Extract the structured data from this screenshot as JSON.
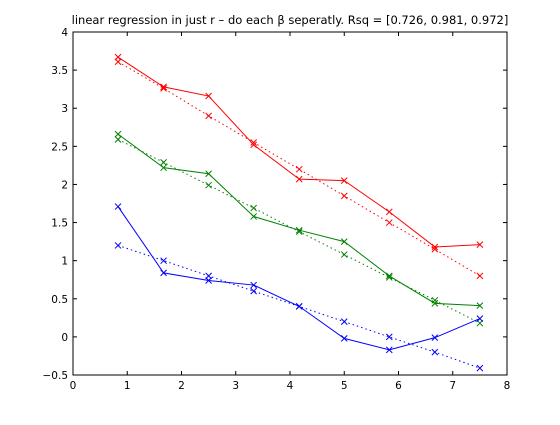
{
  "chart_data": {
    "type": "line",
    "title": "linear regression in just r – do each β seperatly. Rsq = [0.726, 0.981, 0.972]",
    "xlabel": "",
    "ylabel": "",
    "xlim": [
      0,
      8
    ],
    "ylim": [
      -0.5,
      4
    ],
    "xticks": [
      0,
      1,
      2,
      3,
      4,
      5,
      6,
      7,
      8
    ],
    "yticks": [
      -0.5,
      0,
      0.5,
      1,
      1.5,
      2,
      2.5,
      3,
      3.5,
      4
    ],
    "xtick_labels": [
      "0",
      "1",
      "2",
      "3",
      "4",
      "5",
      "6",
      "7",
      "8"
    ],
    "ytick_labels": [
      "−0.5",
      "0",
      "0.5",
      "1",
      "1.5",
      "2",
      "2.5",
      "3",
      "3.5",
      "4"
    ],
    "grid": false,
    "legend": "none",
    "x": [
      0.83,
      1.67,
      2.5,
      3.33,
      4.17,
      5.0,
      5.83,
      6.67,
      7.5
    ],
    "series": [
      {
        "color": "#ff0000",
        "style": "solid",
        "marker": "x",
        "values": [
          3.67,
          3.28,
          3.16,
          2.52,
          2.07,
          2.05,
          1.64,
          1.18,
          1.21
        ]
      },
      {
        "color": "#ff0000",
        "style": "dotted",
        "marker": "x",
        "values": [
          3.61,
          3.26,
          2.9,
          2.55,
          2.2,
          1.85,
          1.5,
          1.15,
          0.8
        ]
      },
      {
        "color": "#008000",
        "style": "solid",
        "marker": "x",
        "values": [
          2.66,
          2.22,
          2.14,
          1.58,
          1.4,
          1.25,
          0.8,
          0.44,
          0.41
        ]
      },
      {
        "color": "#008000",
        "style": "dotted",
        "marker": "x",
        "values": [
          2.59,
          2.29,
          1.99,
          1.69,
          1.38,
          1.08,
          0.78,
          0.48,
          0.18
        ]
      },
      {
        "color": "#0000ff",
        "style": "solid",
        "marker": "x",
        "values": [
          1.71,
          0.84,
          0.74,
          0.68,
          0.4,
          -0.02,
          -0.17,
          -0.01,
          0.24
        ]
      },
      {
        "color": "#0000ff",
        "style": "dotted",
        "marker": "x",
        "values": [
          1.2,
          1.0,
          0.8,
          0.6,
          0.4,
          0.2,
          0.0,
          -0.2,
          -0.41
        ]
      }
    ]
  }
}
